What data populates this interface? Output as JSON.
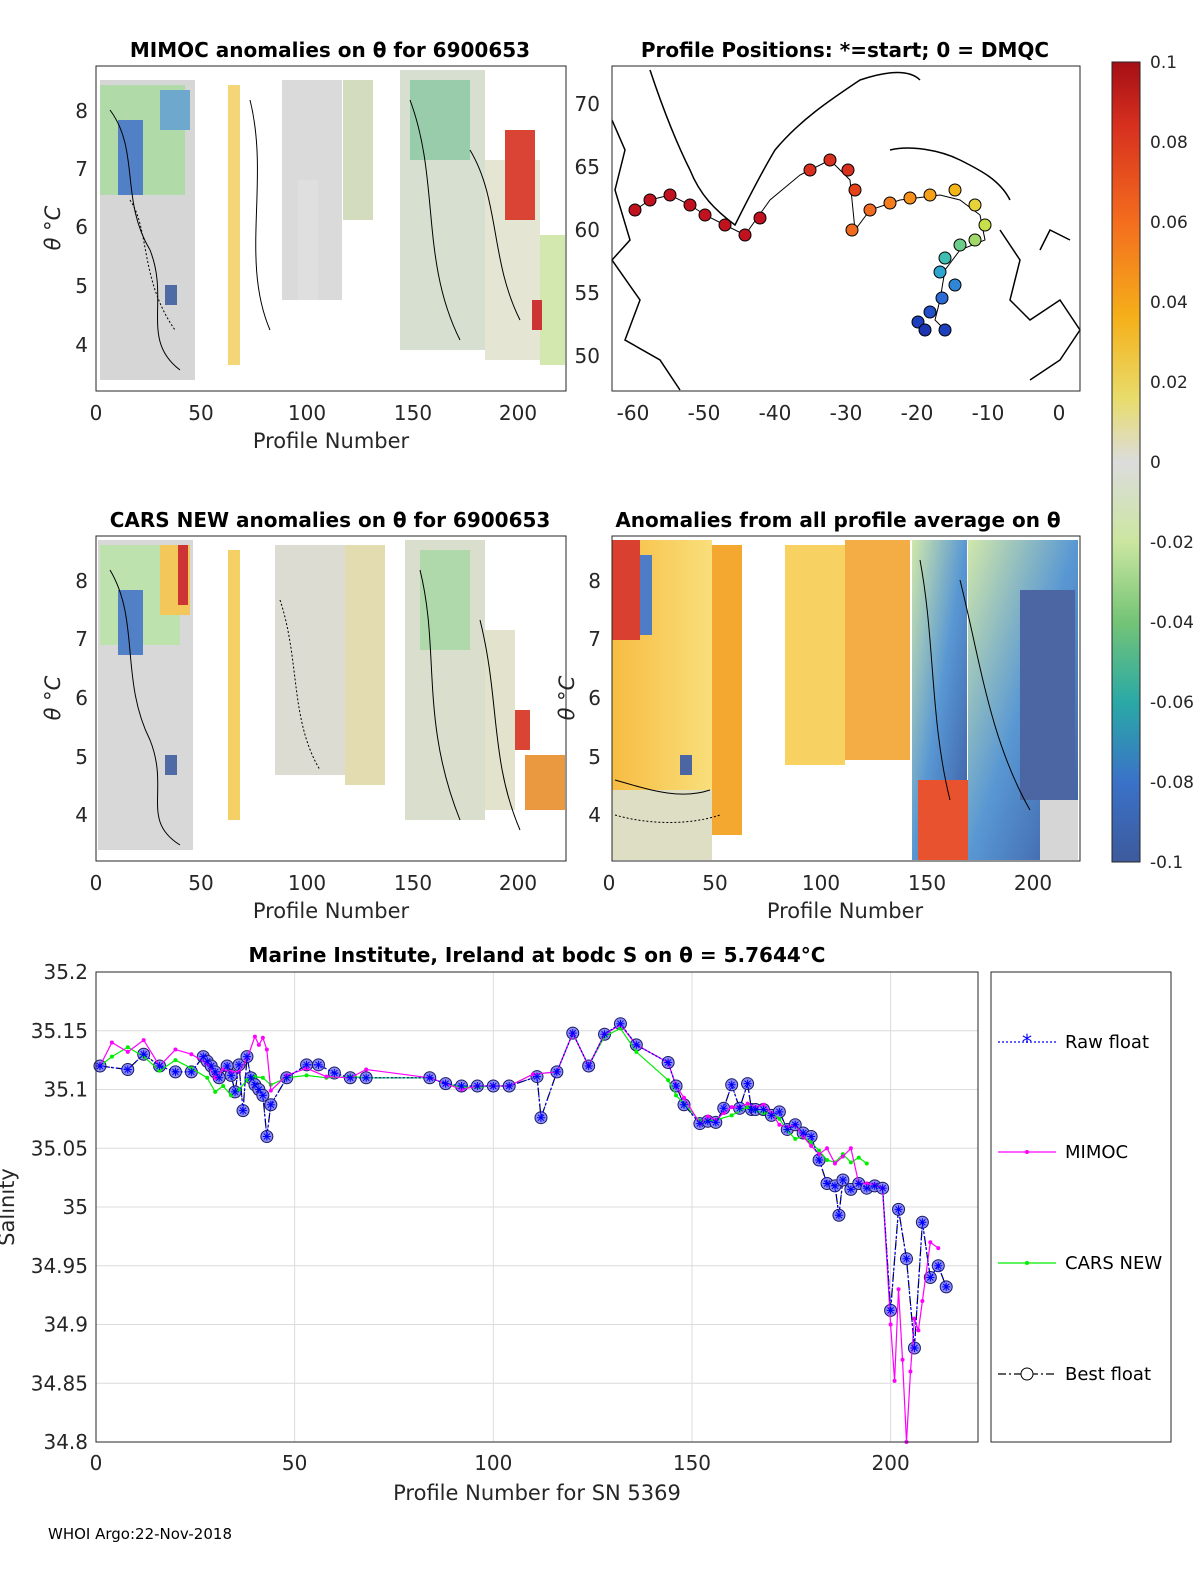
{
  "footer": "WHOI Argo:22-Nov-2018",
  "colors": {
    "raw": "#0000ff",
    "mimoc": "#ff00ff",
    "cars": "#00ee00",
    "best_edge": "#1a1a66",
    "best_fill": "#8c8cf2",
    "grid": "#dcdcdc"
  },
  "panels": {
    "mimoc": {
      "title": "MIMOC anomalies on θ  for 6900653",
      "ylabel": "θ °C",
      "xlabel": "Profile Number",
      "xticks": [
        "0",
        "50",
        "100",
        "150",
        "200"
      ],
      "yticks": [
        "4",
        "5",
        "6",
        "7",
        "8"
      ]
    },
    "map": {
      "title": "Profile Positions: *=start; 0 = DMQC",
      "xticks": [
        "-60",
        "-50",
        "-40",
        "-30",
        "-20",
        "-10",
        "0"
      ],
      "yticks": [
        "50",
        "55",
        "60",
        "65",
        "70"
      ]
    },
    "cars": {
      "title": "CARS NEW anomalies on θ for 6900653",
      "ylabel": "θ °C",
      "xlabel": "Profile Number",
      "xticks": [
        "0",
        "50",
        "100",
        "150",
        "200"
      ],
      "yticks": [
        "4",
        "5",
        "6",
        "7",
        "8"
      ]
    },
    "avg": {
      "title": "Anomalies from all profile average on θ",
      "ylabel": "θ °C",
      "xlabel": "Profile Number",
      "xticks": [
        "0",
        "50",
        "100",
        "150",
        "200"
      ],
      "yticks": [
        "4",
        "5",
        "6",
        "7",
        "8"
      ]
    },
    "colorbar": {
      "ticks": [
        "0.1",
        "0.08",
        "0.06",
        "0.04",
        "0.02",
        "0",
        "-0.02",
        "-0.04",
        "-0.06",
        "-0.08",
        "-0.1"
      ]
    }
  },
  "chart_data": {
    "type": "line",
    "title": "Marine Institute, Ireland at bodc S on θ = 5.7644°C",
    "xlabel": "Profile Number for SN 5369",
    "ylabel": "Salinity",
    "xlim": [
      0,
      222
    ],
    "ylim": [
      34.8,
      35.2
    ],
    "xticks": [
      0,
      50,
      100,
      150,
      200
    ],
    "yticks": [
      35.2,
      35.15,
      35.1,
      35.05,
      35,
      34.95,
      34.9,
      34.85,
      34.8
    ],
    "ytick_labels": [
      "35.2",
      "35.15",
      "35.1",
      "35.05",
      "35",
      "34.95",
      "34.9",
      "34.85",
      "34.8"
    ],
    "legend": [
      "Raw float",
      "MIMOC",
      "CARS NEW",
      "Best float"
    ],
    "series": [
      {
        "name": "Raw float",
        "marker": "*",
        "style": "dotted",
        "x": [
          1,
          8,
          12,
          16,
          20,
          24,
          27,
          28,
          29,
          30,
          31,
          33,
          34,
          35,
          36,
          37,
          38,
          39,
          40,
          41,
          42,
          43,
          44,
          48,
          53,
          56,
          60,
          64,
          68,
          84,
          88,
          92,
          96,
          100,
          104,
          111,
          112,
          116,
          120,
          124,
          128,
          132,
          136,
          144,
          146,
          148,
          152,
          154,
          156,
          158,
          160,
          162,
          164,
          165,
          166,
          168,
          170,
          172,
          174,
          176,
          178,
          180,
          182,
          184,
          186,
          187,
          188,
          190,
          192,
          194,
          196,
          198,
          200,
          202,
          204,
          206,
          208,
          210,
          212,
          214
        ],
        "y": [
          35.12,
          35.117,
          35.13,
          35.12,
          35.115,
          35.115,
          35.128,
          35.124,
          35.12,
          35.115,
          35.11,
          35.12,
          35.112,
          35.098,
          35.121,
          35.082,
          35.128,
          35.11,
          35.104,
          35.1,
          35.095,
          35.06,
          35.087,
          35.11,
          35.121,
          35.121,
          35.114,
          35.11,
          35.11,
          35.11,
          35.105,
          35.103,
          35.103,
          35.103,
          35.103,
          35.111,
          35.076,
          35.115,
          35.148,
          35.12,
          35.147,
          35.156,
          35.138,
          35.123,
          35.103,
          35.087,
          35.071,
          35.073,
          35.072,
          35.084,
          35.104,
          35.084,
          35.105,
          35.083,
          35.083,
          35.083,
          35.078,
          35.081,
          35.066,
          35.07,
          35.063,
          35.06,
          35.04,
          35.02,
          35.018,
          34.993,
          35.023,
          35.015,
          35.02,
          35.016,
          35.018,
          35.016,
          34.912,
          34.998,
          34.956,
          34.88,
          34.987,
          34.94,
          34.95,
          34.932
        ]
      },
      {
        "name": "MIMOC",
        "marker": ".",
        "style": "solid",
        "x": [
          1,
          4,
          8,
          12,
          16,
          20,
          24,
          28,
          30,
          32,
          34,
          36,
          38,
          40,
          41,
          42,
          43,
          44,
          48,
          53,
          58,
          64,
          68,
          84,
          88,
          92,
          96,
          100,
          104,
          110,
          116,
          120,
          124,
          128,
          132,
          136,
          144,
          146,
          148,
          152,
          154,
          156,
          158,
          160,
          162,
          164,
          166,
          168,
          170,
          172,
          174,
          176,
          178,
          180,
          182,
          184,
          186,
          188,
          190,
          192,
          194,
          196,
          198,
          200,
          201,
          202,
          203,
          204,
          205,
          206,
          207,
          208,
          210,
          212
        ],
        "y": [
          35.12,
          35.14,
          35.132,
          35.142,
          35.12,
          35.134,
          35.13,
          35.122,
          35.11,
          35.117,
          35.115,
          35.115,
          35.126,
          35.145,
          35.138,
          35.144,
          35.134,
          35.099,
          35.112,
          35.118,
          35.111,
          35.11,
          35.117,
          35.11,
          35.105,
          35.1,
          35.103,
          35.103,
          35.103,
          35.113,
          35.115,
          35.148,
          35.12,
          35.147,
          35.155,
          35.138,
          35.123,
          35.103,
          35.093,
          35.071,
          35.077,
          35.074,
          35.08,
          35.085,
          35.085,
          35.088,
          35.085,
          35.087,
          35.08,
          35.07,
          35.068,
          35.07,
          35.06,
          35.052,
          35.045,
          35.05,
          35.037,
          35.043,
          35.05,
          35.02,
          35.02,
          35.019,
          35.016,
          34.9,
          34.852,
          34.93,
          34.87,
          34.8,
          34.86,
          34.905,
          34.895,
          34.92,
          34.97,
          34.965
        ]
      },
      {
        "name": "CARS NEW",
        "marker": ".",
        "style": "solid",
        "x": [
          1,
          4,
          8,
          12,
          16,
          20,
          24,
          28,
          30,
          32,
          34,
          36,
          38,
          40,
          42,
          44,
          48,
          53,
          58,
          64,
          68,
          84,
          88,
          92,
          96,
          100,
          104,
          110,
          116,
          120,
          124,
          128,
          132,
          136,
          144,
          146,
          148,
          152,
          156,
          160,
          164,
          166,
          168,
          170,
          172,
          174,
          176,
          178,
          180,
          182,
          184,
          186,
          188,
          190,
          192,
          194
        ],
        "y": [
          35.12,
          35.128,
          35.136,
          35.128,
          35.116,
          35.125,
          35.118,
          35.11,
          35.098,
          35.103,
          35.095,
          35.1,
          35.108,
          35.111,
          35.11,
          35.104,
          35.11,
          35.112,
          35.11,
          35.111,
          35.11,
          35.11,
          35.105,
          35.102,
          35.102,
          35.103,
          35.103,
          35.113,
          35.115,
          35.148,
          35.12,
          35.145,
          35.152,
          35.132,
          35.108,
          35.095,
          35.088,
          35.073,
          35.074,
          35.078,
          35.085,
          35.082,
          35.08,
          35.08,
          35.075,
          35.065,
          35.058,
          35.06,
          35.055,
          35.048,
          35.04,
          35.038,
          35.045,
          35.038,
          35.042,
          35.037
        ]
      },
      {
        "name": "Best float",
        "marker": "o",
        "style": "dashdot",
        "x": [
          1,
          8,
          12,
          16,
          20,
          24,
          27,
          28,
          29,
          30,
          31,
          33,
          34,
          35,
          36,
          37,
          38,
          39,
          40,
          41,
          42,
          43,
          44,
          48,
          53,
          56,
          60,
          64,
          68,
          84,
          88,
          92,
          96,
          100,
          104,
          111,
          112,
          116,
          120,
          124,
          128,
          132,
          136,
          144,
          146,
          148,
          152,
          154,
          156,
          158,
          160,
          162,
          164,
          165,
          166,
          168,
          170,
          172,
          174,
          176,
          178,
          180,
          182,
          184,
          186,
          187,
          188,
          190,
          192,
          194,
          196,
          198,
          200,
          202,
          204,
          206,
          208,
          210,
          212,
          214
        ],
        "y": [
          35.12,
          35.117,
          35.13,
          35.12,
          35.115,
          35.115,
          35.128,
          35.124,
          35.12,
          35.115,
          35.11,
          35.12,
          35.112,
          35.098,
          35.121,
          35.082,
          35.128,
          35.11,
          35.104,
          35.1,
          35.095,
          35.06,
          35.087,
          35.11,
          35.121,
          35.121,
          35.114,
          35.11,
          35.11,
          35.11,
          35.105,
          35.103,
          35.103,
          35.103,
          35.103,
          35.111,
          35.076,
          35.115,
          35.148,
          35.12,
          35.147,
          35.156,
          35.138,
          35.123,
          35.103,
          35.087,
          35.071,
          35.073,
          35.072,
          35.084,
          35.104,
          35.084,
          35.105,
          35.083,
          35.083,
          35.083,
          35.078,
          35.081,
          35.066,
          35.07,
          35.063,
          35.06,
          35.04,
          35.02,
          35.018,
          34.993,
          35.023,
          35.015,
          35.02,
          35.016,
          35.018,
          35.016,
          34.912,
          34.998,
          34.956,
          34.88,
          34.987,
          34.94,
          34.95,
          34.932
        ]
      }
    ]
  }
}
